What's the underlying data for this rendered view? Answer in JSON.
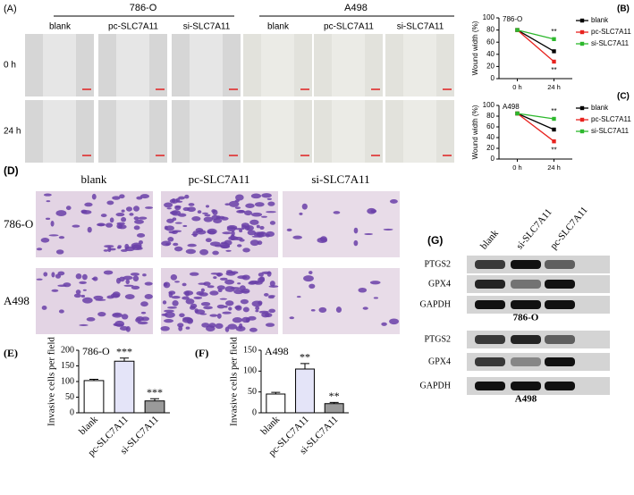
{
  "panels": {
    "A": {
      "label": "(A)",
      "groups": [
        "786-O",
        "A498"
      ],
      "columns": [
        "blank",
        "pc-SLC7A11",
        "si-SLC7A11",
        "blank",
        "pc-SLC7A11",
        "si-SLC7A11"
      ],
      "rows": [
        "0 h",
        "24 h"
      ]
    },
    "D": {
      "label": "(D)",
      "columns": [
        "blank",
        "pc-SLC7A11",
        "si-SLC7A11"
      ],
      "rows": [
        "786-O",
        "A498"
      ]
    },
    "G": {
      "label": "(G)",
      "columns": [
        "blank",
        "si-SLC7A11",
        "pc-SLC7A11"
      ],
      "rows": [
        "PTGS2",
        "GPX4",
        "GAPDH"
      ],
      "groups": [
        "786-O",
        "A498"
      ]
    }
  },
  "chart_data": [
    {
      "type": "line",
      "panel": "(B)",
      "title": "786-O",
      "ylabel": "Wound width (%)",
      "categories": [
        "0 h",
        "24 h"
      ],
      "ylim": [
        0,
        100
      ],
      "yticks": [
        0,
        20,
        40,
        60,
        80,
        100
      ],
      "series": [
        {
          "name": "blank",
          "color": "#000000",
          "values": [
            80,
            45
          ]
        },
        {
          "name": "pc-SLC7A11",
          "color": "#e8231f",
          "values": [
            80,
            28
          ],
          "significance": [
            null,
            "**"
          ]
        },
        {
          "name": "si-SLC7A11",
          "color": "#2db82d",
          "values": [
            80,
            65
          ],
          "significance": [
            null,
            "**"
          ]
        }
      ]
    },
    {
      "type": "line",
      "panel": "(C)",
      "title": "A498",
      "ylabel": "Wound width (%)",
      "categories": [
        "0 h",
        "24 h"
      ],
      "ylim": [
        0,
        100
      ],
      "yticks": [
        0,
        20,
        40,
        60,
        80,
        100
      ],
      "series": [
        {
          "name": "blank",
          "color": "#000000",
          "values": [
            85,
            55
          ]
        },
        {
          "name": "pc-SLC7A11",
          "color": "#e8231f",
          "values": [
            85,
            33
          ],
          "significance": [
            null,
            "**"
          ]
        },
        {
          "name": "si-SLC7A11",
          "color": "#2db82d",
          "values": [
            85,
            75
          ],
          "significance": [
            null,
            "**"
          ]
        }
      ]
    },
    {
      "type": "bar",
      "panel": "(E)",
      "title": "786-O",
      "ylabel": "Invasive cells per field",
      "categories": [
        "blank",
        "pc-SLC7A11",
        "si-SLC7A11"
      ],
      "values": [
        103,
        165,
        38
      ],
      "errors": [
        4,
        10,
        7
      ],
      "colors": [
        "#ffffff",
        "#e4e4f8",
        "#9a9a9a"
      ],
      "significance": [
        null,
        "***",
        "***"
      ],
      "ylim": [
        0,
        200
      ],
      "yticks": [
        0,
        50,
        100,
        150,
        200
      ]
    },
    {
      "type": "bar",
      "panel": "(F)",
      "title": "A498",
      "ylabel": "Invasive cells per field",
      "categories": [
        "blank",
        "pc-SLC7A11",
        "si-SLC7A11"
      ],
      "values": [
        45,
        105,
        22
      ],
      "errors": [
        4,
        13,
        3
      ],
      "colors": [
        "#ffffff",
        "#e4e4f8",
        "#9a9a9a"
      ],
      "significance": [
        null,
        "**",
        "**"
      ],
      "ylim": [
        0,
        150
      ],
      "yticks": [
        0,
        50,
        100,
        150
      ]
    }
  ]
}
